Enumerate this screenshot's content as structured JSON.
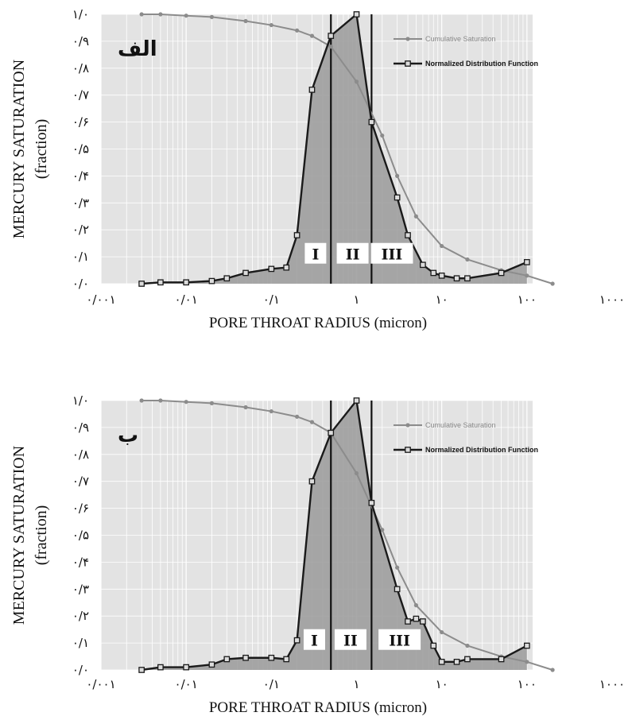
{
  "chart_data": [
    {
      "type": "line",
      "panel_label": "الف",
      "xlabel": "PORE THROAT RADIUS (micron)",
      "ylabel": "MERCURY SATURATION",
      "ylabel_unit": "(fraction)",
      "x_scale": "log",
      "xlim": [
        0.001,
        1000
      ],
      "ylim": [
        0,
        1
      ],
      "x_tick_labels": [
        "۰/۰۰۱",
        "۰/۰۱",
        "۰/۱",
        "۱",
        "۱۰",
        "۱۰۰",
        "۱۰۰۰"
      ],
      "y_tick_labels": [
        "۰/۰",
        "۰/۱",
        "۰/۲",
        "۰/۳",
        "۰/۴",
        "۰/۵",
        "۰/۶",
        "۰/۷",
        "۰/۸",
        "۰/۹",
        "۱/۰"
      ],
      "grid": true,
      "legend_position": "top-right",
      "vertical_lines": [
        0.5,
        1.5
      ],
      "regions": [
        "I",
        "II",
        "III"
      ],
      "region_centers": [
        0.33,
        0.9,
        2.6
      ],
      "series": [
        {
          "name": "Cumulative Saturation",
          "color": "#8c8c8c",
          "x": [
            0.003,
            0.005,
            0.01,
            0.02,
            0.05,
            0.1,
            0.2,
            0.3,
            0.5,
            1,
            2,
            3,
            5,
            10,
            20,
            50,
            100,
            200
          ],
          "y": [
            1.0,
            1.0,
            0.995,
            0.99,
            0.975,
            0.96,
            0.94,
            0.92,
            0.88,
            0.75,
            0.55,
            0.4,
            0.25,
            0.14,
            0.09,
            0.05,
            0.03,
            0.0
          ]
        },
        {
          "name": "Normalized Distribution Function",
          "color": "#1a1a1a",
          "x": [
            0.003,
            0.005,
            0.01,
            0.02,
            0.03,
            0.05,
            0.1,
            0.15,
            0.2,
            0.3,
            0.5,
            1,
            1.5,
            3,
            4,
            6,
            8,
            10,
            15,
            20,
            50,
            100
          ],
          "y": [
            0.0,
            0.005,
            0.005,
            0.01,
            0.02,
            0.04,
            0.055,
            0.06,
            0.18,
            0.72,
            0.92,
            1.0,
            0.6,
            0.32,
            0.18,
            0.07,
            0.04,
            0.03,
            0.02,
            0.02,
            0.04,
            0.08
          ]
        }
      ]
    },
    {
      "type": "line",
      "panel_label": "ب",
      "xlabel": "PORE THROAT RADIUS (micron)",
      "ylabel": "MERCURY SATURATION",
      "ylabel_unit": "(fraction)",
      "x_scale": "log",
      "xlim": [
        0.001,
        1000
      ],
      "ylim": [
        0,
        1
      ],
      "x_tick_labels": [
        "۰/۰۰۱",
        "۰/۰۱",
        "۰/۱",
        "۱",
        "۱۰",
        "۱۰۰",
        "۱۰۰۰"
      ],
      "y_tick_labels": [
        "۰/۰",
        "۰/۱",
        "۰/۲",
        "۰/۳",
        "۰/۴",
        "۰/۵",
        "۰/۶",
        "۰/۷",
        "۰/۸",
        "۰/۹",
        "۱/۰"
      ],
      "grid": true,
      "legend_position": "top-right",
      "vertical_lines": [
        0.5,
        1.5
      ],
      "regions": [
        "I",
        "II",
        "III"
      ],
      "region_centers": [
        0.32,
        0.85,
        3.2
      ],
      "series": [
        {
          "name": "Cumulative Saturation",
          "color": "#8c8c8c",
          "x": [
            0.003,
            0.005,
            0.01,
            0.02,
            0.05,
            0.1,
            0.2,
            0.3,
            0.5,
            1,
            2,
            3,
            5,
            10,
            20,
            50,
            100,
            200
          ],
          "y": [
            1.0,
            1.0,
            0.995,
            0.99,
            0.975,
            0.96,
            0.94,
            0.92,
            0.88,
            0.73,
            0.52,
            0.38,
            0.24,
            0.14,
            0.09,
            0.05,
            0.03,
            0.0
          ]
        },
        {
          "name": "Normalized Distribution Function",
          "color": "#1a1a1a",
          "x": [
            0.003,
            0.005,
            0.01,
            0.02,
            0.03,
            0.05,
            0.1,
            0.15,
            0.2,
            0.3,
            0.5,
            1,
            1.5,
            3,
            4,
            5,
            6,
            8,
            10,
            15,
            20,
            50,
            100
          ],
          "y": [
            0.0,
            0.01,
            0.01,
            0.02,
            0.04,
            0.045,
            0.045,
            0.04,
            0.11,
            0.7,
            0.88,
            1.0,
            0.62,
            0.3,
            0.18,
            0.19,
            0.18,
            0.09,
            0.03,
            0.03,
            0.04,
            0.04,
            0.09
          ]
        }
      ]
    }
  ]
}
